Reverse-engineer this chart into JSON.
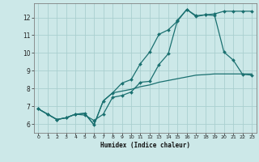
{
  "xlabel": "Humidex (Indice chaleur)",
  "bg_color": "#cce8e8",
  "grid_color": "#aacfcf",
  "line_color": "#1a7070",
  "xlim": [
    -0.5,
    23.5
  ],
  "ylim": [
    5.5,
    12.8
  ],
  "xticks": [
    0,
    1,
    2,
    3,
    4,
    5,
    6,
    7,
    8,
    9,
    10,
    11,
    12,
    13,
    14,
    15,
    16,
    17,
    18,
    19,
    20,
    21,
    22,
    23
  ],
  "yticks": [
    6,
    7,
    8,
    9,
    10,
    11,
    12
  ],
  "series1_x": [
    0,
    1,
    2,
    3,
    4,
    5,
    6,
    7,
    8,
    9,
    10,
    11,
    12,
    13,
    14,
    15,
    16,
    17,
    18,
    19,
    20,
    21,
    22,
    23
  ],
  "series1_y": [
    6.85,
    6.55,
    6.25,
    6.35,
    6.55,
    6.6,
    5.95,
    7.3,
    7.75,
    8.3,
    8.5,
    9.4,
    10.05,
    11.05,
    11.3,
    11.8,
    12.45,
    12.05,
    12.15,
    12.2,
    12.35,
    12.35,
    12.35,
    12.35
  ],
  "series2_x": [
    0,
    1,
    2,
    3,
    4,
    5,
    6,
    7,
    8,
    9,
    10,
    11,
    12,
    13,
    14,
    15,
    16,
    17,
    18,
    19,
    20,
    21,
    22,
    23
  ],
  "series2_y": [
    6.85,
    6.55,
    6.25,
    6.35,
    6.55,
    6.5,
    6.2,
    6.55,
    7.5,
    7.6,
    7.8,
    8.35,
    8.4,
    9.35,
    9.95,
    11.85,
    12.45,
    12.1,
    12.15,
    12.1,
    10.05,
    9.6,
    8.8,
    8.75
  ],
  "series3_x": [
    0,
    1,
    2,
    3,
    4,
    5,
    6,
    7,
    8,
    9,
    10,
    11,
    12,
    13,
    14,
    15,
    16,
    17,
    18,
    19,
    20,
    21,
    22,
    23
  ],
  "series3_y": [
    6.85,
    6.55,
    6.25,
    6.35,
    6.55,
    6.6,
    5.95,
    7.3,
    7.75,
    7.85,
    7.95,
    8.1,
    8.2,
    8.35,
    8.45,
    8.55,
    8.65,
    8.75,
    8.78,
    8.82,
    8.82,
    8.82,
    8.82,
    8.82
  ]
}
